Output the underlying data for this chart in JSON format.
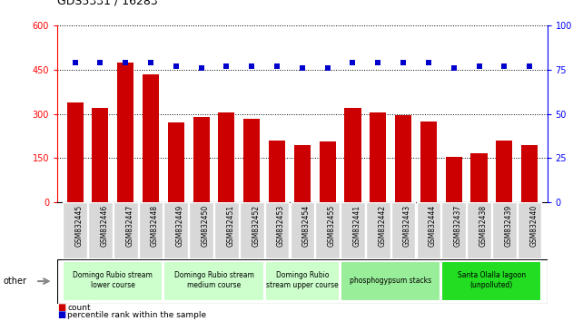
{
  "title": "GDS5331 / 16283",
  "samples": [
    "GSM832445",
    "GSM832446",
    "GSM832447",
    "GSM832448",
    "GSM832449",
    "GSM832450",
    "GSM832451",
    "GSM832452",
    "GSM832453",
    "GSM832454",
    "GSM832455",
    "GSM832441",
    "GSM832442",
    "GSM832443",
    "GSM832444",
    "GSM832437",
    "GSM832438",
    "GSM832439",
    "GSM832440"
  ],
  "counts": [
    340,
    320,
    475,
    435,
    270,
    290,
    305,
    285,
    210,
    195,
    205,
    320,
    305,
    295,
    275,
    155,
    168,
    210,
    195
  ],
  "percentiles": [
    79,
    79,
    79,
    79,
    77,
    76,
    77,
    77,
    77,
    76,
    76,
    79,
    79,
    79,
    79,
    76,
    77,
    77,
    77
  ],
  "groups": [
    {
      "label": "Domingo Rubio stream\nlower course",
      "start": 0,
      "end": 4,
      "color": "#ccffcc"
    },
    {
      "label": "Domingo Rubio stream\nmedium course",
      "start": 4,
      "end": 8,
      "color": "#ccffcc"
    },
    {
      "label": "Domingo Rubio\nstream upper course",
      "start": 8,
      "end": 11,
      "color": "#ccffcc"
    },
    {
      "label": "phosphogypsum stacks",
      "start": 11,
      "end": 15,
      "color": "#99ee99"
    },
    {
      "label": "Santa Olalla lagoon\n(unpolluted)",
      "start": 15,
      "end": 19,
      "color": "#22dd22"
    }
  ],
  "ylim_left": [
    0,
    600
  ],
  "ylim_right": [
    0,
    100
  ],
  "yticks_left": [
    0,
    150,
    300,
    450,
    600
  ],
  "yticks_right": [
    0,
    25,
    50,
    75,
    100
  ],
  "bar_color": "#cc0000",
  "dot_color": "#0000cc",
  "bar_width": 0.65
}
